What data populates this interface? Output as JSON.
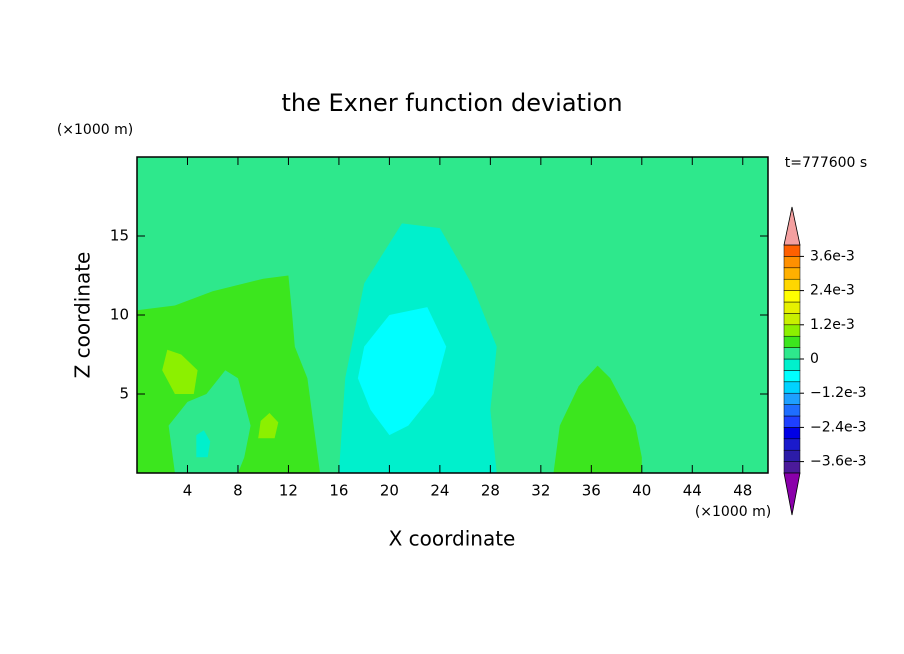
{
  "chart_data": {
    "type": "contour",
    "title": "the Exner function deviation",
    "xlabel": "X coordinate",
    "ylabel": "Z coordinate",
    "x_unit": "(×1000 m)",
    "y_unit": "(×1000 m)",
    "annotation": "t=777600 s",
    "xlim": [
      0,
      50
    ],
    "ylim": [
      0,
      20
    ],
    "xticks": [
      4,
      8,
      12,
      16,
      20,
      24,
      28,
      32,
      36,
      40,
      44,
      48
    ],
    "yticks": [
      5,
      10,
      15
    ],
    "levels": [
      -0.004,
      -0.0036,
      -0.0032,
      -0.0028,
      -0.0024,
      -0.002,
      -0.0016,
      -0.0012,
      -0.0008,
      -0.0004,
      0,
      0.0004,
      0.0008,
      0.0012,
      0.0016,
      0.002,
      0.0024,
      0.0028,
      0.0032,
      0.0036,
      0.004
    ],
    "colors": [
      "#4b1a9a",
      "#2c1ca8",
      "#1a1acc",
      "#0000e6",
      "#1e40ff",
      "#1e6eff",
      "#1ea0ff",
      "#00d2ff",
      "#00ffff",
      "#00f0cc",
      "#2ee88c",
      "#3ce61e",
      "#8cf000",
      "#c8f000",
      "#e6f000",
      "#ffff00",
      "#ffd700",
      "#ffb000",
      "#ff9000",
      "#ff6000",
      "#ff2020"
    ],
    "under_color": "#8a00aa",
    "over_color": "#f4a0a0",
    "colorbar_ticks": [
      {
        "value": 0.0036,
        "label": "3.6e-3"
      },
      {
        "value": 0.0024,
        "label": "2.4e-3"
      },
      {
        "value": 0.0012,
        "label": "1.2e-3"
      },
      0,
      {
        "value": -0.0012,
        "label": "−1.2e-3"
      },
      {
        "value": -0.0024,
        "label": "−2.4e-3"
      },
      {
        "value": -0.0036,
        "label": "−3.6e-3"
      }
    ]
  }
}
